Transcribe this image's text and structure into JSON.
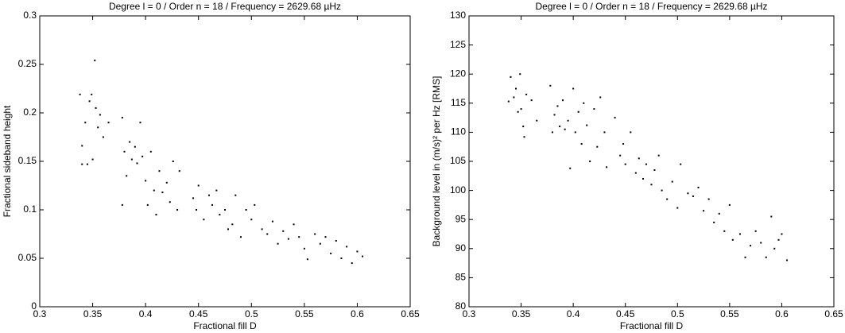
{
  "chart_data": [
    {
      "type": "scatter",
      "title": "Degree l = 0 / Order n = 18 / Frequency = 2629.68 µHz",
      "xlabel": "Fractional fill D",
      "ylabel": "Fractional sideband height",
      "color": "#000000",
      "x": [
        0.338,
        0.34,
        0.34,
        0.343,
        0.345,
        0.347,
        0.349,
        0.35,
        0.352,
        0.353,
        0.355,
        0.357,
        0.36,
        0.365,
        0.378,
        0.378,
        0.38,
        0.382,
        0.385,
        0.387,
        0.39,
        0.392,
        0.395,
        0.397,
        0.4,
        0.402,
        0.405,
        0.408,
        0.41,
        0.413,
        0.416,
        0.42,
        0.423,
        0.426,
        0.43,
        0.432,
        0.445,
        0.448,
        0.45,
        0.455,
        0.46,
        0.463,
        0.467,
        0.47,
        0.475,
        0.478,
        0.482,
        0.485,
        0.49,
        0.495,
        0.5,
        0.503,
        0.51,
        0.515,
        0.52,
        0.525,
        0.53,
        0.535,
        0.54,
        0.545,
        0.55,
        0.553,
        0.56,
        0.565,
        0.57,
        0.575,
        0.58,
        0.585,
        0.59,
        0.595,
        0.6,
        0.605
      ],
      "values": [
        0.219,
        0.166,
        0.147,
        0.19,
        0.147,
        0.212,
        0.219,
        0.152,
        0.254,
        0.205,
        0.185,
        0.198,
        0.175,
        0.19,
        0.195,
        0.105,
        0.16,
        0.135,
        0.17,
        0.152,
        0.165,
        0.148,
        0.19,
        0.155,
        0.13,
        0.105,
        0.16,
        0.12,
        0.095,
        0.14,
        0.118,
        0.128,
        0.108,
        0.15,
        0.1,
        0.14,
        0.112,
        0.1,
        0.125,
        0.09,
        0.115,
        0.105,
        0.12,
        0.095,
        0.1,
        0.08,
        0.085,
        0.115,
        0.072,
        0.1,
        0.09,
        0.105,
        0.08,
        0.075,
        0.088,
        0.065,
        0.078,
        0.07,
        0.085,
        0.072,
        0.06,
        0.049,
        0.075,
        0.065,
        0.072,
        0.055,
        0.068,
        0.05,
        0.062,
        0.045,
        0.057,
        0.052
      ],
      "xlim": [
        0.3,
        0.65
      ],
      "xticks": [
        0.3,
        0.35,
        0.4,
        0.45,
        0.5,
        0.55,
        0.6,
        0.65
      ],
      "ylim": [
        0,
        0.3
      ],
      "yticks": [
        0,
        0.05,
        0.1,
        0.15,
        0.2,
        0.25,
        0.3
      ]
    },
    {
      "type": "scatter",
      "title": "Degree l = 0 / Order n = 18 / Frequency = 2629.68 µHz",
      "xlabel": "Fractional fill D",
      "ylabel": "Background level in (m/s)² per Hz [RMS]",
      "color": "#000000",
      "x": [
        0.338,
        0.34,
        0.343,
        0.345,
        0.347,
        0.349,
        0.35,
        0.352,
        0.353,
        0.355,
        0.36,
        0.365,
        0.378,
        0.38,
        0.382,
        0.385,
        0.387,
        0.39,
        0.392,
        0.395,
        0.397,
        0.4,
        0.402,
        0.405,
        0.408,
        0.41,
        0.413,
        0.416,
        0.42,
        0.423,
        0.426,
        0.43,
        0.432,
        0.44,
        0.445,
        0.448,
        0.45,
        0.455,
        0.46,
        0.463,
        0.467,
        0.47,
        0.475,
        0.478,
        0.482,
        0.485,
        0.49,
        0.495,
        0.5,
        0.503,
        0.51,
        0.515,
        0.52,
        0.525,
        0.53,
        0.535,
        0.54,
        0.545,
        0.55,
        0.553,
        0.56,
        0.565,
        0.57,
        0.575,
        0.58,
        0.585,
        0.59,
        0.593,
        0.597,
        0.6,
        0.605
      ],
      "values": [
        115.3,
        119.5,
        116,
        117.5,
        113.5,
        120,
        114,
        111,
        109.2,
        116.5,
        115.5,
        112,
        118,
        110,
        113,
        114.5,
        111,
        115.5,
        110.5,
        112,
        103.8,
        117.5,
        110,
        113.5,
        108,
        115,
        111.2,
        105,
        114,
        107.5,
        116,
        110,
        104,
        112.5,
        106,
        108,
        104.5,
        110,
        103,
        105.5,
        102,
        104.5,
        101,
        103.5,
        106,
        100,
        98.5,
        101.5,
        97,
        104.5,
        99.5,
        99,
        100.5,
        96.5,
        98.5,
        94.5,
        96,
        93,
        97.5,
        91.5,
        92.5,
        88.5,
        90.5,
        93,
        91,
        88.5,
        95.5,
        90,
        91.5,
        92.5,
        88
      ],
      "xlim": [
        0.3,
        0.65
      ],
      "xticks": [
        0.3,
        0.35,
        0.4,
        0.45,
        0.5,
        0.55,
        0.6,
        0.65
      ],
      "ylim": [
        80,
        130
      ],
      "yticks": [
        80,
        85,
        90,
        95,
        100,
        105,
        110,
        115,
        120,
        125,
        130
      ]
    }
  ]
}
